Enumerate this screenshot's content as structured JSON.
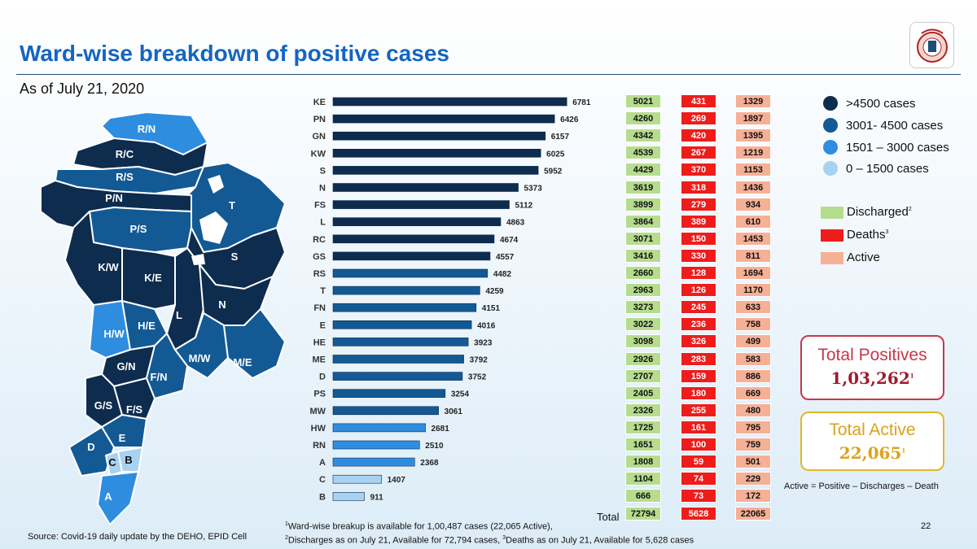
{
  "title": "Ward-wise breakdown of positive cases",
  "subtitle": "As of July 21, 2020",
  "colors": {
    "title": "#1565c0",
    "gt4500": "#0d2c4e",
    "r3001_4500": "#135a94",
    "r1501_3000": "#2f8de0",
    "r0_1500": "#a8d2f2",
    "discharged": "#b6dc8e",
    "deaths": "#ef1c1c",
    "active": "#f6b096",
    "total_positive_border": "#c8374a",
    "total_active_border": "#e4b52b"
  },
  "map": {
    "labels": [
      "R/N",
      "R/C",
      "R/S",
      "P/N",
      "T",
      "P/S",
      "S",
      "K/W",
      "K/E",
      "N",
      "L",
      "H/W",
      "H/E",
      "M/W",
      "M/E",
      "G/N",
      "F/N",
      "G/S",
      "F/S",
      "E",
      "D",
      "C",
      "B",
      "A"
    ]
  },
  "chart_data": {
    "type": "bar",
    "orientation": "horizontal",
    "categories": [
      "KE",
      "PN",
      "GN",
      "KW",
      "S",
      "N",
      "FS",
      "L",
      "RC",
      "GS",
      "RS",
      "T",
      "FN",
      "E",
      "HE",
      "ME",
      "D",
      "PS",
      "MW",
      "HW",
      "RN",
      "A",
      "C",
      "B"
    ],
    "values": [
      6781,
      6426,
      6157,
      6025,
      5952,
      5373,
      5112,
      4863,
      4674,
      4557,
      4482,
      4259,
      4151,
      4016,
      3923,
      3792,
      3752,
      3254,
      3061,
      2681,
      2510,
      2368,
      1407,
      911
    ],
    "xlim": [
      0,
      6800
    ],
    "legend": [
      {
        "label": ">4500 cases",
        "color": "#0d2c4e"
      },
      {
        "label": "3001- 4500 cases",
        "color": "#135a94"
      },
      {
        "label": "1501 – 3000 cases",
        "color": "#2f8de0"
      },
      {
        "label": "0 – 1500 cases",
        "color": "#a8d2f2"
      }
    ],
    "table": {
      "discharged": [
        5021,
        4260,
        4342,
        4539,
        4429,
        3619,
        3899,
        3864,
        3071,
        3416,
        2660,
        2963,
        3273,
        3022,
        3098,
        2926,
        2707,
        2405,
        2326,
        1725,
        1651,
        1808,
        1104,
        666
      ],
      "deaths": [
        431,
        269,
        420,
        267,
        370,
        318,
        279,
        389,
        150,
        330,
        128,
        126,
        245,
        236,
        326,
        283,
        159,
        180,
        255,
        161,
        100,
        59,
        74,
        73
      ],
      "active": [
        1329,
        1897,
        1395,
        1219,
        1153,
        1436,
        934,
        610,
        1453,
        811,
        1694,
        1170,
        633,
        758,
        499,
        583,
        886,
        669,
        480,
        795,
        759,
        501,
        229,
        172
      ],
      "total_label": "Total",
      "totals": {
        "discharged": "72794",
        "deaths": "5628",
        "active": "22065"
      }
    }
  },
  "table_legend": {
    "discharged": "Discharged",
    "discharged_sup": "2",
    "deaths": "Deaths",
    "deaths_sup": "3",
    "active": "Active"
  },
  "total_positives": {
    "label": "Total Positives",
    "value": "1,03,262",
    "sup": "1"
  },
  "total_active": {
    "label": "Total Active",
    "value": "22,065",
    "sup": "1"
  },
  "formula": "Active = Positive – Discharges – Death",
  "page_number": "22",
  "source": "Source: Covid-19 daily update by the DEHO, EPID Cell",
  "footnotes": {
    "fn1_sup": "1",
    "fn1": "Ward-wise breakup is available for 1,00,487 cases (22,065 Active),",
    "fn2_sup": "2",
    "fn2": "Discharges as on July 21, Available for 72,794 cases, ",
    "fn3_sup": "3",
    "fn3": "Deaths as on July 21, Available for 5,628 cases"
  }
}
